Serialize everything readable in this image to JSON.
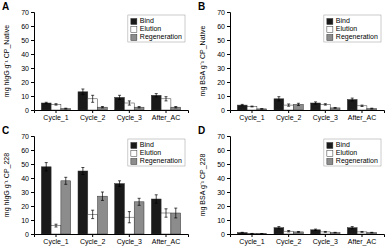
{
  "chart_data": [
    {
      "type": "bar",
      "title": "A",
      "ylabel": "mg hIgG g⁻¹ CP_Native",
      "categories": [
        "Cycle_1",
        "Cycle_2",
        "Cycle_3",
        "After_AC"
      ],
      "series": [
        {
          "name": "Bind",
          "color": "#1a1a1a",
          "values": [
            5.0,
            13.0,
            9.0,
            10.5
          ],
          "errors": [
            0.5,
            2.0,
            1.5,
            1.2
          ]
        },
        {
          "name": "Elution",
          "color": "#ffffff",
          "values": [
            4.0,
            8.0,
            5.0,
            8.0
          ],
          "errors": [
            0.5,
            2.5,
            1.5,
            1.5
          ]
        },
        {
          "name": "Regeneration",
          "color": "#8c8c8c",
          "values": [
            1.0,
            2.0,
            2.0,
            2.0
          ],
          "errors": [
            0.3,
            0.5,
            0.5,
            0.5
          ]
        }
      ],
      "ylim": [
        0,
        70
      ],
      "yticks": [
        0,
        10,
        20,
        30,
        40,
        50,
        60,
        70
      ],
      "legend": "upper right"
    },
    {
      "type": "bar",
      "title": "B",
      "ylabel": "mg BSA g⁻¹ CP_Native",
      "categories": [
        "Cycle_1",
        "Cycle_2",
        "Cycle_3",
        "After_AC"
      ],
      "series": [
        {
          "name": "Bind",
          "color": "#1a1a1a",
          "values": [
            3.5,
            8.0,
            5.0,
            7.5
          ],
          "errors": [
            0.5,
            1.5,
            0.8,
            1.0
          ]
        },
        {
          "name": "Elution",
          "color": "#ffffff",
          "values": [
            2.5,
            3.5,
            4.0,
            3.0
          ],
          "errors": [
            0.3,
            0.8,
            0.5,
            0.5
          ]
        },
        {
          "name": "Regeneration",
          "color": "#8c8c8c",
          "values": [
            0.8,
            4.0,
            1.5,
            1.0
          ],
          "errors": [
            0.2,
            0.8,
            0.3,
            0.3
          ]
        }
      ],
      "ylim": [
        0,
        70
      ],
      "yticks": [
        0,
        10,
        20,
        30,
        40,
        50,
        60,
        70
      ],
      "legend": "upper right"
    },
    {
      "type": "bar",
      "title": "C",
      "ylabel": "mg hIgG g⁻¹ CP_228",
      "categories": [
        "Cycle_1",
        "Cycle_2",
        "Cycle_3",
        "After_AC"
      ],
      "series": [
        {
          "name": "Bind",
          "color": "#1a1a1a",
          "values": [
            48.0,
            45.0,
            36.0,
            25.0
          ],
          "errors": [
            3.0,
            2.5,
            2.0,
            3.0
          ]
        },
        {
          "name": "Elution",
          "color": "#ffffff",
          "values": [
            6.0,
            14.0,
            12.0,
            15.0
          ],
          "errors": [
            1.0,
            3.0,
            4.0,
            3.0
          ]
        },
        {
          "name": "Regeneration",
          "color": "#8c8c8c",
          "values": [
            38.0,
            27.0,
            23.0,
            15.0
          ],
          "errors": [
            2.5,
            3.0,
            2.5,
            3.5
          ]
        }
      ],
      "ylim": [
        0,
        70
      ],
      "yticks": [
        0,
        10,
        20,
        30,
        40,
        50,
        60,
        70
      ],
      "legend": "upper right"
    },
    {
      "type": "bar",
      "title": "D",
      "ylabel": "mg BSA g⁻¹ CP_228",
      "categories": [
        "Cycle_1",
        "Cycle_2",
        "Cycle_3",
        "After_AC"
      ],
      "series": [
        {
          "name": "Bind",
          "color": "#1a1a1a",
          "values": [
            1.0,
            4.5,
            3.0,
            4.5
          ],
          "errors": [
            0.2,
            0.8,
            0.5,
            0.8
          ]
        },
        {
          "name": "Elution",
          "color": "#ffffff",
          "values": [
            0.3,
            2.0,
            1.5,
            1.5
          ],
          "errors": [
            0.1,
            0.5,
            0.3,
            0.3
          ]
        },
        {
          "name": "Regeneration",
          "color": "#8c8c8c",
          "values": [
            0.2,
            1.5,
            1.0,
            1.0
          ],
          "errors": [
            0.1,
            0.3,
            0.2,
            0.2
          ]
        }
      ],
      "ylim": [
        0,
        70
      ],
      "yticks": [
        0,
        10,
        20,
        30,
        40,
        50,
        60,
        70
      ],
      "legend": "upper right"
    }
  ]
}
